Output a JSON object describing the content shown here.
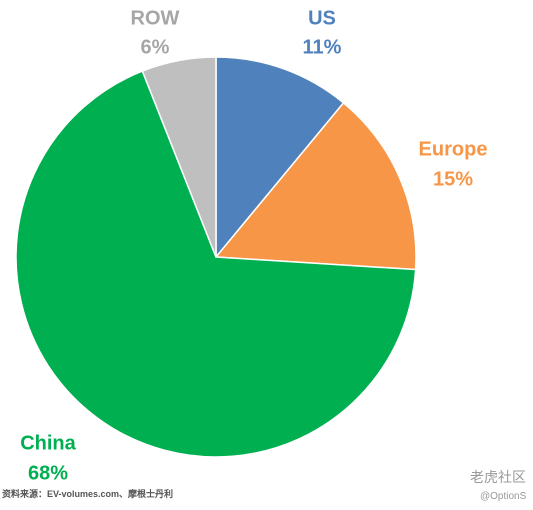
{
  "chart_data": {
    "type": "pie",
    "categories": [
      "US",
      "Europe",
      "China",
      "ROW"
    ],
    "values": [
      11,
      15,
      68,
      6
    ],
    "value_labels": [
      "11%",
      "15%",
      "68%",
      "6%"
    ],
    "colors": [
      "#4f81bd",
      "#f79646",
      "#00b050",
      "#bfbfbf"
    ],
    "label_colors": [
      "#4f81bd",
      "#f79646",
      "#00b050",
      "#a6a6a6"
    ],
    "source": "资料来源：EV-volumes.com、摩根士丹利",
    "annotations": [
      "老虎社区",
      "@OptionS"
    ]
  }
}
